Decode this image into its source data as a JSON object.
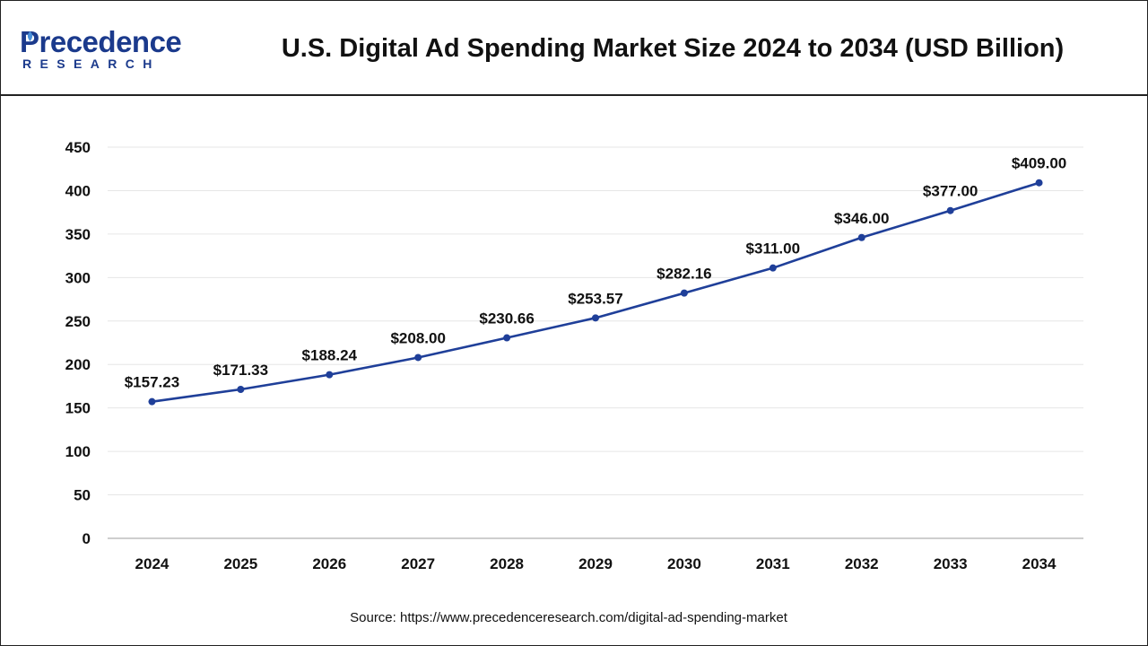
{
  "header": {
    "logo_top": "Precedence",
    "logo_bottom": "RESEARCH",
    "title": "U.S. Digital Ad Spending Market Size 2024 to 2034 (USD Billion)"
  },
  "source": "Source: https://www.precedenceresearch.com/digital-ad-spending-market",
  "colors": {
    "line": "#1f3f99",
    "brand": "#1b3a8c",
    "grid": "#e6e6e6",
    "axis": "#bdbdbd"
  },
  "chart_data": {
    "type": "line",
    "title": "U.S. Digital Ad Spending Market Size 2024 to 2034 (USD Billion)",
    "xlabel": "",
    "ylabel": "",
    "categories": [
      "2024",
      "2025",
      "2026",
      "2027",
      "2028",
      "2029",
      "2030",
      "2031",
      "2032",
      "2033",
      "2034"
    ],
    "series": [
      {
        "values": [
          157.23,
          171.33,
          188.24,
          208.0,
          230.66,
          253.57,
          282.16,
          311.0,
          346.0,
          377.0,
          409.0
        ]
      }
    ],
    "data_labels": [
      "$157.23",
      "$171.33",
      "$188.24",
      "$208.00",
      "$230.66",
      "$253.57",
      "$282.16",
      "$311.00",
      "$346.00",
      "$377.00",
      "$409.00"
    ],
    "yticks": [
      0,
      50,
      100,
      150,
      200,
      250,
      300,
      350,
      400,
      450
    ],
    "ylim": [
      0,
      450
    ],
    "grid": true,
    "legend": "none"
  }
}
